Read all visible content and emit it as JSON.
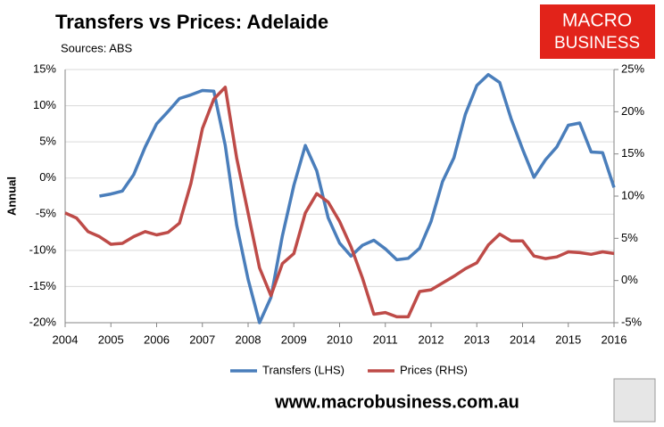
{
  "chart_data": {
    "type": "line",
    "title": "Transfers vs Prices: Adelaide",
    "subtitle": "Sources: ABS",
    "ylabel": "Annual",
    "logo": [
      "MACRO",
      "BUSINESS"
    ],
    "footer": "www.macrobusiness.com.au",
    "x": [
      2004,
      2004.25,
      2004.5,
      2004.75,
      2005,
      2005.25,
      2005.5,
      2005.75,
      2006,
      2006.25,
      2006.5,
      2006.75,
      2007,
      2007.25,
      2007.5,
      2007.75,
      2008,
      2008.25,
      2008.5,
      2008.75,
      2009,
      2009.25,
      2009.5,
      2009.75,
      2010,
      2010.25,
      2010.5,
      2010.75,
      2011,
      2011.25,
      2011.5,
      2011.75,
      2012,
      2012.25,
      2012.5,
      2012.75,
      2013,
      2013.25,
      2013.5,
      2013.75,
      2014,
      2014.25,
      2014.5,
      2014.75,
      2015,
      2015.25,
      2015.5,
      2015.75,
      2016
    ],
    "series": [
      {
        "name": "Transfers (LHS)",
        "color": "#4a7ebb",
        "values": [
          null,
          null,
          null,
          -2.5,
          -2.2,
          -1.8,
          0.5,
          4.3,
          7.5,
          9.2,
          11.0,
          11.5,
          12.1,
          12.0,
          4.5,
          -6.5,
          -14,
          -20,
          -16.5,
          -8,
          -1,
          4.5,
          1,
          -5.5,
          -9,
          -10.8,
          -9.3,
          -8.6,
          -9.8,
          -11.3,
          -11.1,
          -9.7,
          -6,
          -0.5,
          2.8,
          8.8,
          12.8,
          14.3,
          13.2,
          8.2,
          4.0,
          0.1,
          2.5,
          4.3,
          7.3,
          7.6,
          3.6,
          3.5,
          -1.3
        ]
      },
      {
        "name": "Prices (RHS)",
        "color": "#be4b48",
        "axis": "y2",
        "values": [
          8,
          7.4,
          5.8,
          5.2,
          4.3,
          4.4,
          5.2,
          5.8,
          5.4,
          5.7,
          6.8,
          11.5,
          18,
          21.5,
          22.9,
          14.5,
          8,
          1.5,
          -1.8,
          2,
          3.2,
          8,
          10.3,
          9.3,
          7,
          4,
          0.3,
          -4,
          -3.8,
          -4.3,
          -4.3,
          -1.3,
          -1.1,
          -0.3,
          0.5,
          1.4,
          2.1,
          4.2,
          5.5,
          4.7,
          4.7,
          2.9,
          2.6,
          2.8,
          3.4,
          3.3,
          3.1,
          3.4,
          3.2
        ]
      }
    ],
    "xlim": [
      2004,
      2016
    ],
    "xticks": [
      2004,
      2005,
      2006,
      2007,
      2008,
      2009,
      2010,
      2011,
      2012,
      2013,
      2014,
      2015,
      2016
    ],
    "ylim": [
      -20,
      15
    ],
    "yticks": [
      {
        "value": -20,
        "label": "-20%"
      },
      {
        "value": -15,
        "label": "-15%"
      },
      {
        "value": -10,
        "label": "-10%"
      },
      {
        "value": -5,
        "label": "-5%"
      },
      {
        "value": 0,
        "label": "0%"
      },
      {
        "value": 5,
        "label": "5%"
      },
      {
        "value": 10,
        "label": "10%"
      },
      {
        "value": 15,
        "label": "15%"
      }
    ],
    "y2lim": [
      -5,
      25
    ],
    "y2ticks": [
      {
        "value": -5,
        "label": "-5%"
      },
      {
        "value": 0,
        "label": "0%"
      },
      {
        "value": 5,
        "label": "5%"
      },
      {
        "value": 10,
        "label": "10%"
      },
      {
        "value": 15,
        "label": "15%"
      },
      {
        "value": 20,
        "label": "20%"
      },
      {
        "value": 25,
        "label": "25%"
      }
    ],
    "grid": true,
    "legend": "bottom"
  }
}
